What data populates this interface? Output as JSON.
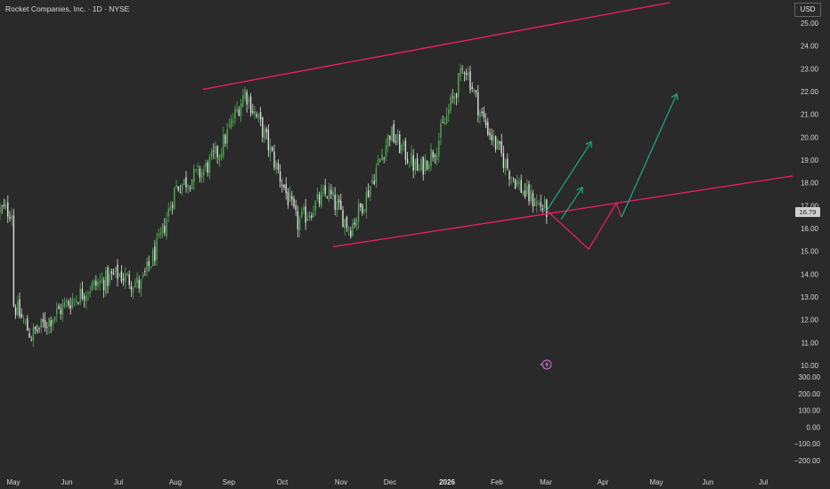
{
  "header": {
    "title": "Rocket Companies, Inc. · 1D · NYSE",
    "currency_label": "USD",
    "last_price_label": "16.79"
  },
  "colors": {
    "background": "#2a2a2a",
    "up_candle": "#4caf50",
    "down_candle": "#e0e0e0",
    "trendline": "#e91e63",
    "projection_up": "#1aa37f",
    "projection_down": "#e91e63",
    "axis_text": "#d6d6d6"
  },
  "chart_data": {
    "type": "candlestick",
    "title": "Rocket Companies, Inc. · 1D · NYSE",
    "price_axis": {
      "range": [
        10.0,
        25.0
      ],
      "ticks": [
        "25.00",
        "24.00",
        "23.00",
        "22.00",
        "21.00",
        "20.00",
        "19.00",
        "18.00",
        "17.00",
        "16.00",
        "15.00",
        "14.00",
        "13.00",
        "12.00",
        "11.00",
        "10.00"
      ]
    },
    "indicator_axis": {
      "range": [
        -200,
        300
      ],
      "ticks": [
        "300.00",
        "200.00",
        "100.00",
        "0.00",
        "−100.00",
        "−200.00"
      ]
    },
    "x_axis": {
      "ticks": [
        "May",
        "Jun",
        "Jul",
        "Aug",
        "Sep",
        "Oct",
        "Nov",
        "Dec",
        "2026",
        "Feb",
        "Mar",
        "Apr",
        "May",
        "Jun",
        "Jul"
      ]
    },
    "last_price": 16.79,
    "close_path": [
      {
        "x": "May",
        "y": 12.7
      },
      {
        "x": "May-mid",
        "y": 11.3
      },
      {
        "x": "Jun",
        "y": 12.7
      },
      {
        "x": "Jun-mid",
        "y": 13.4
      },
      {
        "x": "Jul",
        "y": 14.0
      },
      {
        "x": "Jul-mid",
        "y": 13.5
      },
      {
        "x": "Jul-late",
        "y": 15.5
      },
      {
        "x": "Aug",
        "y": 17.8
      },
      {
        "x": "Aug-mid",
        "y": 18.5
      },
      {
        "x": "Aug-late",
        "y": 19.5
      },
      {
        "x": "Sep",
        "y": 22.0
      },
      {
        "x": "Sep-mid",
        "y": 20.3
      },
      {
        "x": "Oct",
        "y": 18.0
      },
      {
        "x": "Oct-mid",
        "y": 16.2
      },
      {
        "x": "Oct-late",
        "y": 17.6
      },
      {
        "x": "Nov",
        "y": 16.0
      },
      {
        "x": "Nov-mid",
        "y": 17.3
      },
      {
        "x": "Dec",
        "y": 20.2
      },
      {
        "x": "Dec-mid",
        "y": 18.5
      },
      {
        "x": "Dec-late",
        "y": 19.6
      },
      {
        "x": "2026",
        "y": 23.2
      },
      {
        "x": "Jan-mid",
        "y": 21.0
      },
      {
        "x": "Jan-late",
        "y": 19.8
      },
      {
        "x": "Feb",
        "y": 18.5
      },
      {
        "x": "Feb-mid",
        "y": 17.5
      },
      {
        "x": "Mar",
        "y": 16.79
      }
    ],
    "trendlines": [
      {
        "name": "upper",
        "from": {
          "x": "Aug-mid",
          "y": 22.1
        },
        "to": {
          "x": "May",
          "y": 25.9
        }
      },
      {
        "name": "lower",
        "from": {
          "x": "Nov",
          "y": 15.2
        },
        "to": {
          "x": "Jul",
          "y": 18.3
        }
      }
    ],
    "projections": [
      {
        "color": "red",
        "points": [
          [
            16.79
          ],
          [
            15.1
          ],
          [
            17.1
          ],
          [
            16.5
          ]
        ]
      },
      {
        "color": "green",
        "points": [
          [
            16.79
          ],
          [
            19.8
          ]
        ]
      },
      {
        "color": "green",
        "points": [
          [
            16.4
          ],
          [
            17.8
          ]
        ]
      },
      {
        "color": "green",
        "points": [
          [
            16.5
          ],
          [
            21.9
          ]
        ]
      }
    ]
  }
}
